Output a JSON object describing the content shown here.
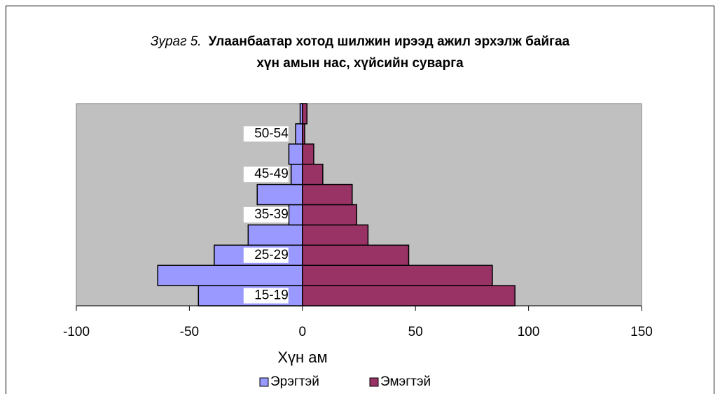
{
  "chart_data": {
    "type": "bar",
    "orientation": "horizontal",
    "stacked": true,
    "title_label": "Зураг 5.",
    "title": [
      "Улаанбаатар хотод шилжин ирээд ажил эрхэлж байгаа",
      "хүн амын нас, хүйсийн суварга"
    ],
    "x_label": "Хүн ам",
    "categories": [
      "15-19",
      null,
      "25-29",
      null,
      "35-39",
      null,
      "45-49",
      null,
      "50-54",
      null
    ],
    "series": [
      {
        "name": "Эрэгтэй",
        "color": "#9999ff",
        "values": [
          -46,
          -64,
          -39,
          -24,
          -6,
          -20,
          -5,
          -6,
          -3,
          -1
        ]
      },
      {
        "name": "Эмэгтэй",
        "color": "#993366",
        "values": [
          94,
          84,
          47,
          29,
          24,
          22,
          9,
          5,
          1,
          2
        ]
      }
    ],
    "xlim": [
      -100,
      150
    ],
    "xticks": [
      -100,
      -50,
      0,
      50,
      100,
      150
    ],
    "plot_background": "#c0c0c0",
    "legend": "bottom"
  }
}
